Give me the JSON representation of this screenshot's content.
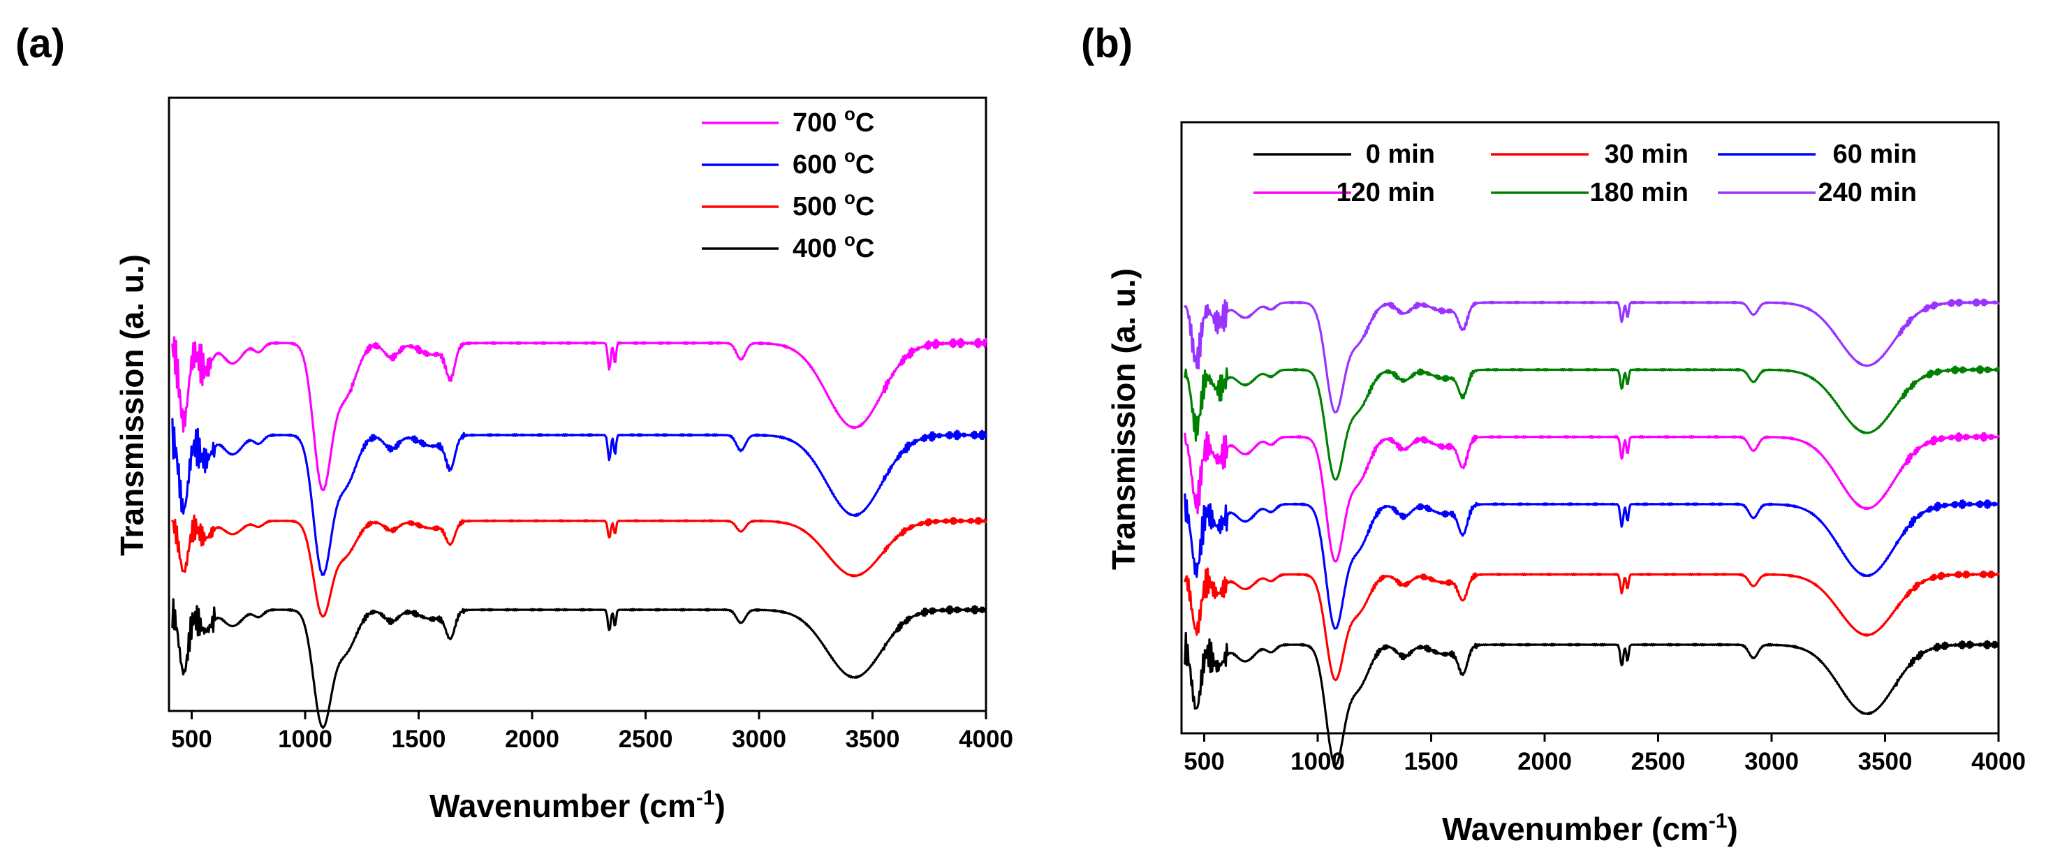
{
  "chart_data": [
    {
      "type": "line",
      "panel_label": "(a)",
      "xlabel": "Wavenumber (cm",
      "xlabel_sup": "-1",
      "xlabel_tail": ")",
      "ylabel": "Transmission (a. u.)",
      "xlim": [
        400,
        4000
      ],
      "ylim": [
        0,
        10
      ],
      "xticks": [
        500,
        1000,
        1500,
        2000,
        2500,
        3000,
        3500,
        4000
      ],
      "y_ticks_labeled": false,
      "legend_position": "top-right",
      "legend_columns": 1,
      "series": [
        {
          "name": "700 °C",
          "label_num": "700 ",
          "label_sup": "o",
          "label_unit": "C",
          "color": "#ff00ff",
          "baseline": 6.0,
          "scale": 1.0
        },
        {
          "name": "600 °C",
          "label_num": "600 ",
          "label_sup": "o",
          "label_unit": "C",
          "color": "#0000ff",
          "baseline": 4.5,
          "scale": 0.95
        },
        {
          "name": "500 °C",
          "label_num": "500 ",
          "label_sup": "o",
          "label_unit": "C",
          "color": "#ff0000",
          "baseline": 3.1,
          "scale": 0.65
        },
        {
          "name": "400 °C",
          "label_num": "400 ",
          "label_sup": "o",
          "label_unit": "C",
          "color": "#000000",
          "baseline": 1.65,
          "scale": 0.8
        }
      ]
    },
    {
      "type": "line",
      "panel_label": "(b)",
      "xlabel": "Wavenumber (cm",
      "xlabel_sup": "-1",
      "xlabel_tail": ")",
      "ylabel": "Transmission (a. u.)",
      "xlim": [
        400,
        4000
      ],
      "ylim": [
        0,
        10
      ],
      "xticks": [
        500,
        1000,
        1500,
        2000,
        2500,
        3000,
        3500,
        4000
      ],
      "y_ticks_labeled": false,
      "legend_position": "top",
      "legend_columns": 3,
      "series": [
        {
          "name": "0 min",
          "label_num": "0 min",
          "color": "#000000",
          "baseline": 1.45,
          "scale": 0.82
        },
        {
          "name": "30 min",
          "label_num": "30 min",
          "color": "#ff0000",
          "baseline": 2.6,
          "scale": 0.72
        },
        {
          "name": "60 min",
          "label_num": "60 min",
          "color": "#0000ff",
          "baseline": 3.75,
          "scale": 0.85
        },
        {
          "name": "120 min",
          "label_num": "120 min",
          "color": "#ff00ff",
          "baseline": 4.85,
          "scale": 0.85
        },
        {
          "name": "180 min",
          "label_num": "180 min",
          "color": "#008000",
          "baseline": 5.95,
          "scale": 0.75
        },
        {
          "name": "240 min",
          "label_num": "240 min",
          "color": "#9933ff",
          "baseline": 7.05,
          "scale": 0.75
        }
      ]
    }
  ]
}
